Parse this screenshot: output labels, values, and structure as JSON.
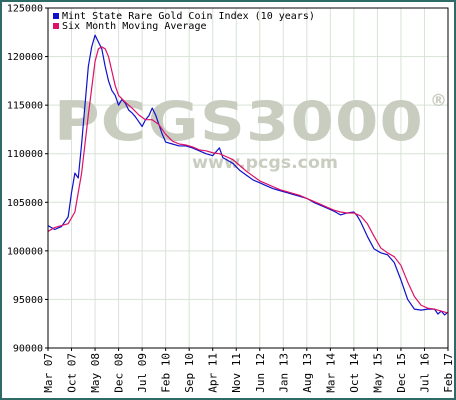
{
  "colors": {
    "frame": "#2f6b66",
    "plot_bg": "#ffffff",
    "grid": "#d7e3d5",
    "axis": "#000000",
    "series_index": "#1010cc",
    "series_avg": "#dd1166",
    "watermark": "#c9cdc0"
  },
  "watermark": {
    "main": "PCGS3000",
    "registered": "®",
    "url": "www.pcgs.com"
  },
  "chart_data": {
    "type": "line",
    "title": "",
    "xlabel": "",
    "ylabel": "",
    "ylim": [
      90000,
      125000
    ],
    "yticks": [
      90000,
      95000,
      100000,
      105000,
      110000,
      115000,
      120000,
      125000
    ],
    "ytick_labels": [
      "90000",
      "95000",
      "100000",
      "105000",
      "110000",
      "115000",
      "120000",
      "125000"
    ],
    "xlim": [
      "2007-03",
      "2017-02"
    ],
    "xticks": [
      "2007-03",
      "2007-10",
      "2008-05",
      "2008-12",
      "2009-07",
      "2010-02",
      "2010-09",
      "2011-04",
      "2011-11",
      "2012-06",
      "2013-01",
      "2013-08",
      "2014-03",
      "2014-10",
      "2015-05",
      "2015-12",
      "2016-07",
      "2017-02"
    ],
    "xtick_labels": [
      "Mar 07",
      "Oct 07",
      "May 08",
      "Dec 08",
      "Jul 09",
      "Feb 10",
      "Sep 10",
      "Apr 11",
      "Nov 11",
      "Jun 12",
      "Jan 13",
      "Aug 13",
      "Mar 14",
      "Oct 14",
      "May 15",
      "Dec 15",
      "Jul 16",
      "Feb 17"
    ],
    "grid": true,
    "legend_position": "top-left",
    "series": [
      {
        "name": "Mint State Rare Gold Coin Index (10 years)",
        "color": "#1010cc",
        "points": [
          [
            "2007-03",
            102600
          ],
          [
            "2007-05",
            102200
          ],
          [
            "2007-07",
            102500
          ],
          [
            "2007-09",
            103500
          ],
          [
            "2007-10",
            106000
          ],
          [
            "2007-11",
            108000
          ],
          [
            "2007-12",
            107500
          ],
          [
            "2008-01",
            111000
          ],
          [
            "2008-02",
            115000
          ],
          [
            "2008-03",
            119000
          ],
          [
            "2008-04",
            121000
          ],
          [
            "2008-05",
            122200
          ],
          [
            "2008-06",
            121500
          ],
          [
            "2008-07",
            120800
          ],
          [
            "2008-08",
            119000
          ],
          [
            "2008-09",
            117500
          ],
          [
            "2008-10",
            116500
          ],
          [
            "2008-11",
            116000
          ],
          [
            "2008-12",
            115000
          ],
          [
            "2009-01",
            115600
          ],
          [
            "2009-02",
            115200
          ],
          [
            "2009-03",
            114500
          ],
          [
            "2009-04",
            114200
          ],
          [
            "2009-05",
            113800
          ],
          [
            "2009-06",
            113300
          ],
          [
            "2009-07",
            112800
          ],
          [
            "2009-08",
            113500
          ],
          [
            "2009-09",
            113900
          ],
          [
            "2009-10",
            114700
          ],
          [
            "2009-11",
            114000
          ],
          [
            "2009-12",
            113000
          ],
          [
            "2010-01",
            112000
          ],
          [
            "2010-02",
            111200
          ],
          [
            "2010-04",
            111000
          ],
          [
            "2010-06",
            110800
          ],
          [
            "2010-08",
            110800
          ],
          [
            "2010-10",
            110600
          ],
          [
            "2010-12",
            110300
          ],
          [
            "2011-02",
            110000
          ],
          [
            "2011-04",
            109800
          ],
          [
            "2011-06",
            110600
          ],
          [
            "2011-07",
            109600
          ],
          [
            "2011-08",
            109400
          ],
          [
            "2011-10",
            109000
          ],
          [
            "2011-12",
            108300
          ],
          [
            "2012-02",
            107800
          ],
          [
            "2012-04",
            107300
          ],
          [
            "2012-06",
            107000
          ],
          [
            "2012-08",
            106700
          ],
          [
            "2012-10",
            106400
          ],
          [
            "2012-12",
            106200
          ],
          [
            "2013-02",
            106000
          ],
          [
            "2013-04",
            105800
          ],
          [
            "2013-06",
            105600
          ],
          [
            "2013-08",
            105400
          ],
          [
            "2013-10",
            105000
          ],
          [
            "2013-12",
            104700
          ],
          [
            "2014-02",
            104400
          ],
          [
            "2014-04",
            104100
          ],
          [
            "2014-06",
            103700
          ],
          [
            "2014-08",
            103900
          ],
          [
            "2014-10",
            104000
          ],
          [
            "2014-11",
            103600
          ],
          [
            "2014-12",
            103000
          ],
          [
            "2015-02",
            101500
          ],
          [
            "2015-04",
            100200
          ],
          [
            "2015-06",
            99800
          ],
          [
            "2015-08",
            99600
          ],
          [
            "2015-10",
            98800
          ],
          [
            "2015-12",
            97000
          ],
          [
            "2016-02",
            95000
          ],
          [
            "2016-04",
            94000
          ],
          [
            "2016-06",
            93900
          ],
          [
            "2016-08",
            94000
          ],
          [
            "2016-10",
            94000
          ],
          [
            "2016-11",
            93500
          ],
          [
            "2016-12",
            93800
          ],
          [
            "2017-01",
            93400
          ],
          [
            "2017-02",
            93700
          ]
        ]
      },
      {
        "name": "Six Month Moving Average",
        "color": "#dd1166",
        "points": [
          [
            "2007-03",
            102000
          ],
          [
            "2007-05",
            102400
          ],
          [
            "2007-07",
            102600
          ],
          [
            "2007-09",
            102800
          ],
          [
            "2007-11",
            104000
          ],
          [
            "2008-01",
            108000
          ],
          [
            "2008-03",
            114000
          ],
          [
            "2008-05",
            119500
          ],
          [
            "2008-06",
            120800
          ],
          [
            "2008-07",
            121000
          ],
          [
            "2008-08",
            120800
          ],
          [
            "2008-09",
            120000
          ],
          [
            "2008-10",
            118500
          ],
          [
            "2008-11",
            117000
          ],
          [
            "2008-12",
            116000
          ],
          [
            "2009-02",
            115300
          ],
          [
            "2009-04",
            114700
          ],
          [
            "2009-06",
            114000
          ],
          [
            "2009-08",
            113500
          ],
          [
            "2009-10",
            113500
          ],
          [
            "2009-12",
            113000
          ],
          [
            "2010-02",
            112000
          ],
          [
            "2010-04",
            111300
          ],
          [
            "2010-06",
            111000
          ],
          [
            "2010-08",
            110900
          ],
          [
            "2010-10",
            110700
          ],
          [
            "2010-12",
            110400
          ],
          [
            "2011-02",
            110300
          ],
          [
            "2011-04",
            110100
          ],
          [
            "2011-06",
            110000
          ],
          [
            "2011-08",
            109700
          ],
          [
            "2011-10",
            109400
          ],
          [
            "2011-12",
            108800
          ],
          [
            "2012-02",
            108200
          ],
          [
            "2012-04",
            107700
          ],
          [
            "2012-06",
            107200
          ],
          [
            "2012-08",
            106900
          ],
          [
            "2012-10",
            106600
          ],
          [
            "2012-12",
            106300
          ],
          [
            "2013-02",
            106100
          ],
          [
            "2013-04",
            105900
          ],
          [
            "2013-06",
            105700
          ],
          [
            "2013-08",
            105400
          ],
          [
            "2013-10",
            105100
          ],
          [
            "2013-12",
            104800
          ],
          [
            "2014-02",
            104500
          ],
          [
            "2014-04",
            104200
          ],
          [
            "2014-06",
            104000
          ],
          [
            "2014-08",
            103900
          ],
          [
            "2014-10",
            103900
          ],
          [
            "2014-12",
            103600
          ],
          [
            "2015-02",
            102800
          ],
          [
            "2015-04",
            101500
          ],
          [
            "2015-06",
            100300
          ],
          [
            "2015-08",
            99800
          ],
          [
            "2015-10",
            99400
          ],
          [
            "2015-12",
            98500
          ],
          [
            "2016-02",
            96800
          ],
          [
            "2016-04",
            95300
          ],
          [
            "2016-06",
            94400
          ],
          [
            "2016-08",
            94100
          ],
          [
            "2016-10",
            94000
          ],
          [
            "2016-12",
            93800
          ],
          [
            "2017-02",
            93600
          ]
        ]
      }
    ]
  }
}
